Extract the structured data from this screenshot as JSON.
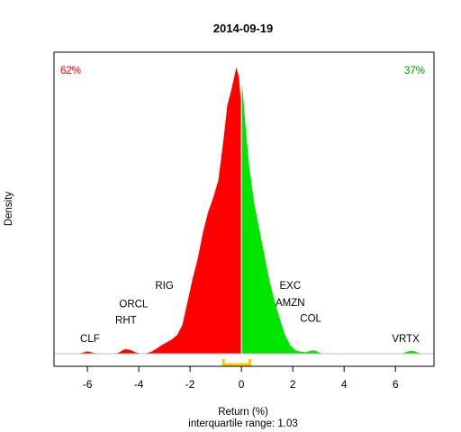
{
  "chart_data": {
    "type": "area",
    "title": "2014-09-19",
    "xlabel": "Return (%)",
    "ylabel": "Density",
    "subtitle": "interquartile range: 1.03",
    "xlim": [
      -7.3,
      7.5
    ],
    "ylim": [
      0,
      1
    ],
    "x_ticks": [
      -6,
      -4,
      -2,
      0,
      2,
      4,
      6
    ],
    "x_tick_labels": [
      "-6",
      "-4",
      "-2",
      "0",
      "2",
      "4",
      "6"
    ],
    "pct_negative": "62%",
    "pct_positive": "37%",
    "colors": {
      "negative": "#ff0000",
      "positive": "#00e600",
      "iqr": "#ffcc00",
      "axis": "#000000",
      "baseline": "#bebebe"
    },
    "iqr": [
      -0.7,
      0.33
    ],
    "density": {
      "x": [
        -6.4,
        -6.2,
        -6.0,
        -5.8,
        -5.6,
        -5.4,
        -5.2,
        -5.0,
        -4.8,
        -4.6,
        -4.5,
        -4.3,
        -4.1,
        -3.9,
        -3.7,
        -3.5,
        -3.3,
        -3.1,
        -2.9,
        -2.7,
        -2.5,
        -2.3,
        -2.1,
        -1.9,
        -1.7,
        -1.5,
        -1.3,
        -1.1,
        -0.9,
        -0.7,
        -0.55,
        -0.4,
        -0.3,
        -0.2,
        -0.1,
        -0.03,
        0.0,
        0.05,
        0.15,
        0.3,
        0.5,
        0.7,
        0.9,
        1.1,
        1.3,
        1.5,
        1.7,
        1.9,
        2.1,
        2.3,
        2.5,
        2.65,
        2.8,
        2.95,
        3.1,
        3.3,
        3.6,
        4.0,
        4.5,
        5.0,
        5.5,
        6.0,
        6.3,
        6.45,
        6.6,
        6.75,
        6.9,
        7.1
      ],
      "y": [
        0.0,
        0.003,
        0.008,
        0.004,
        0.0,
        0.0,
        0.0,
        0.0,
        0.003,
        0.013,
        0.016,
        0.012,
        0.004,
        0.001,
        0.002,
        0.007,
        0.018,
        0.03,
        0.04,
        0.05,
        0.065,
        0.1,
        0.18,
        0.26,
        0.33,
        0.42,
        0.49,
        0.54,
        0.6,
        0.74,
        0.86,
        0.91,
        0.95,
        0.99,
        0.96,
        0.88,
        0.94,
        0.91,
        0.8,
        0.65,
        0.52,
        0.43,
        0.34,
        0.25,
        0.18,
        0.12,
        0.065,
        0.03,
        0.012,
        0.007,
        0.005,
        0.009,
        0.012,
        0.007,
        0.002,
        0.0,
        0.0,
        0.0,
        0.0,
        0.0,
        0.0,
        0.0,
        0.002,
        0.007,
        0.01,
        0.008,
        0.003,
        0.0
      ]
    },
    "annotations": [
      {
        "label": "CLF",
        "x": -5.9,
        "y": 0.04
      },
      {
        "label": "RHT",
        "x": -4.5,
        "y": 0.105
      },
      {
        "label": "ORCL",
        "x": -4.2,
        "y": 0.16
      },
      {
        "label": "RIG",
        "x": -3.0,
        "y": 0.225
      },
      {
        "label": "EXC",
        "x": 1.9,
        "y": 0.225
      },
      {
        "label": "AMZN",
        "x": 1.9,
        "y": 0.165
      },
      {
        "label": "COL",
        "x": 2.7,
        "y": 0.11
      },
      {
        "label": "VRTX",
        "x": 6.4,
        "y": 0.04
      }
    ]
  }
}
